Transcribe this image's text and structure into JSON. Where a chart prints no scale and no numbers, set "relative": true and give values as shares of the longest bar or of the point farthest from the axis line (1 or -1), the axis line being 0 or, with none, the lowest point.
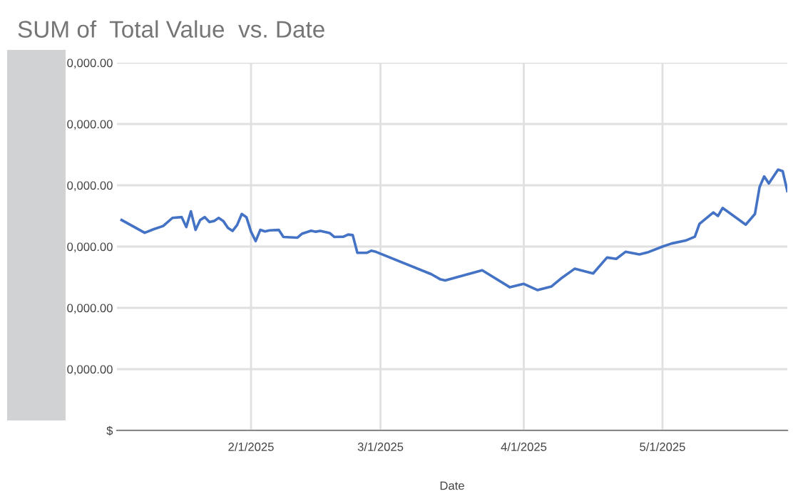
{
  "chart_data": {
    "type": "line",
    "title": "SUM of  Total Value  vs. Date",
    "xlabel": "Date",
    "relative": true,
    "annotations": [
      "$",
      "0,000.00",
      "0,000.00",
      "0,000.00",
      "0,000.00",
      "0,000.00",
      "0,000.00"
    ],
    "x": [
      "2025-01-04",
      "2025-01-09",
      "2025-01-11",
      "2025-01-13",
      "2025-01-15",
      "2025-01-17",
      "2025-01-18",
      "2025-01-19",
      "2025-01-20",
      "2025-01-21",
      "2025-01-22",
      "2025-01-23",
      "2025-01-24",
      "2025-01-25",
      "2025-01-26",
      "2025-01-27",
      "2025-01-28",
      "2025-01-29",
      "2025-01-30",
      "2025-01-31",
      "2025-02-01",
      "2025-02-02",
      "2025-02-03",
      "2025-02-04",
      "2025-02-05",
      "2025-02-07",
      "2025-02-08",
      "2025-02-11",
      "2025-02-12",
      "2025-02-14",
      "2025-02-15",
      "2025-02-16",
      "2025-02-18",
      "2025-02-19",
      "2025-02-21",
      "2025-02-22",
      "2025-02-23",
      "2025-02-24",
      "2025-02-26",
      "2025-02-27",
      "2025-02-28",
      "2025-03-12",
      "2025-03-14",
      "2025-03-15",
      "2025-03-23",
      "2025-03-29",
      "2025-04-01",
      "2025-04-04",
      "2025-04-07",
      "2025-04-09",
      "2025-04-12",
      "2025-04-16",
      "2025-04-19",
      "2025-04-21",
      "2025-04-23",
      "2025-04-26",
      "2025-04-28",
      "2025-05-01",
      "2025-05-03",
      "2025-05-06",
      "2025-05-08",
      "2025-05-09",
      "2025-05-12",
      "2025-05-13",
      "2025-05-14",
      "2025-05-19",
      "2025-05-21",
      "2025-05-22",
      "2025-05-23",
      "2025-05-24",
      "2025-05-26",
      "2025-05-27",
      "2025-05-28"
    ],
    "series": [
      {
        "color": "#4472c4",
        "values": [
          0.807,
          0.758,
          0.772,
          0.784,
          0.815,
          0.818,
          0.78,
          0.84,
          0.769,
          0.807,
          0.818,
          0.799,
          0.803,
          0.815,
          0.803,
          0.777,
          0.765,
          0.788,
          0.83,
          0.818,
          0.762,
          0.726,
          0.769,
          0.763,
          0.767,
          0.769,
          0.742,
          0.739,
          0.754,
          0.766,
          0.762,
          0.765,
          0.757,
          0.742,
          0.743,
          0.751,
          0.749,
          0.681,
          0.681,
          0.689,
          0.685,
          0.599,
          0.579,
          0.575,
          0.614,
          0.549,
          0.562,
          0.538,
          0.552,
          0.582,
          0.62,
          0.602,
          0.663,
          0.658,
          0.685,
          0.675,
          0.684,
          0.705,
          0.717,
          0.728,
          0.743,
          0.792,
          0.836,
          0.822,
          0.853,
          0.789,
          0.83,
          0.933,
          0.974,
          0.947,
          1,
          0.994,
          0.918
        ]
      }
    ],
    "xlim": [
      "2025-01-03",
      "2025-05-28"
    ],
    "xticks": [
      {
        "value": "2025-02-01",
        "label": "2/1/2025"
      },
      {
        "value": "2025-03-01",
        "label": "3/1/2025"
      },
      {
        "value": "2025-04-01",
        "label": "4/1/2025"
      },
      {
        "value": "2025-05-01",
        "label": "5/1/2025"
      }
    ],
    "grid": true,
    "legend": false,
    "marker": "none",
    "line_style": "solid"
  }
}
